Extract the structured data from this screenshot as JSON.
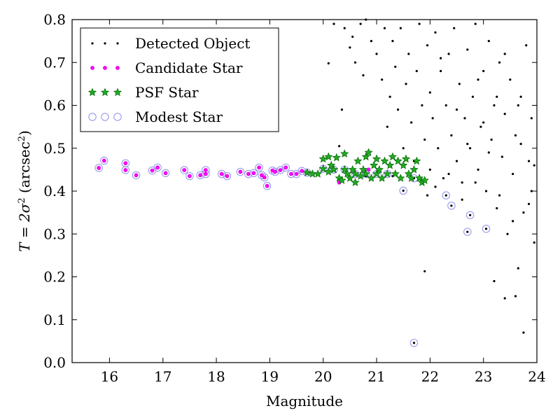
{
  "chart_data": {
    "type": "scatter",
    "xlabel": "Magnitude",
    "ylabel_main": "T = 2σ",
    "ylabel_sup": "2",
    "ylabel_unit": " (arcsec",
    "ylabel_unit_sup": "2",
    "ylabel_close": ")",
    "xlim": [
      15.3,
      24
    ],
    "ylim": [
      0.0,
      0.8
    ],
    "x_ticks": [
      16,
      17,
      18,
      19,
      20,
      21,
      22,
      23,
      24
    ],
    "x_tick_labels": [
      "16",
      "17",
      "18",
      "19",
      "20",
      "21",
      "22",
      "23",
      "24"
    ],
    "y_ticks": [
      0.0,
      0.1,
      0.2,
      0.3,
      0.4,
      0.5,
      0.6,
      0.7,
      0.8
    ],
    "y_tick_labels": [
      "0.0",
      "0.1",
      "0.2",
      "0.3",
      "0.4",
      "0.5",
      "0.6",
      "0.7",
      "0.8"
    ],
    "grid": false,
    "legend_placement": "upper-left",
    "series": [
      {
        "name": "Detected Object",
        "marker": "dot",
        "color": "#000000",
        "points": [
          [
            15.8,
            0.454
          ],
          [
            15.9,
            0.471
          ],
          [
            16.3,
            0.465
          ],
          [
            16.3,
            0.449
          ],
          [
            16.5,
            0.437
          ],
          [
            16.8,
            0.448
          ],
          [
            16.9,
            0.455
          ],
          [
            17.05,
            0.442
          ],
          [
            17.4,
            0.449
          ],
          [
            17.5,
            0.435
          ],
          [
            17.7,
            0.437
          ],
          [
            17.8,
            0.449
          ],
          [
            17.8,
            0.44
          ],
          [
            18.1,
            0.44
          ],
          [
            18.2,
            0.435
          ],
          [
            18.45,
            0.445
          ],
          [
            18.6,
            0.44
          ],
          [
            18.7,
            0.442
          ],
          [
            18.8,
            0.455
          ],
          [
            18.85,
            0.437
          ],
          [
            18.9,
            0.432
          ],
          [
            18.95,
            0.412
          ],
          [
            19.05,
            0.448
          ],
          [
            19.1,
            0.445
          ],
          [
            19.2,
            0.449
          ],
          [
            19.3,
            0.455
          ],
          [
            19.4,
            0.44
          ],
          [
            19.5,
            0.44
          ],
          [
            19.6,
            0.447
          ],
          [
            19.7,
            0.443
          ],
          [
            19.9,
            0.44
          ],
          [
            20.1,
            0.445
          ],
          [
            20.3,
            0.42
          ],
          [
            20.4,
            0.45
          ],
          [
            20.6,
            0.44
          ],
          [
            20.8,
            0.435
          ],
          [
            21.0,
            0.44
          ],
          [
            21.3,
            0.435
          ],
          [
            21.5,
            0.401
          ],
          [
            21.7,
            0.43
          ],
          [
            21.9,
            0.425
          ],
          [
            22.3,
            0.39
          ],
          [
            22.4,
            0.366
          ],
          [
            22.75,
            0.344
          ],
          [
            22.7,
            0.305
          ],
          [
            23.05,
            0.312
          ],
          [
            21.7,
            0.046
          ],
          [
            21.9,
            0.213
          ],
          [
            20.1,
            0.698
          ],
          [
            20.2,
            0.79
          ],
          [
            20.3,
            0.505
          ],
          [
            20.35,
            0.59
          ],
          [
            20.4,
            0.78
          ],
          [
            20.5,
            0.735
          ],
          [
            20.55,
            0.76
          ],
          [
            20.6,
            0.7
          ],
          [
            20.7,
            0.79
          ],
          [
            20.75,
            0.67
          ],
          [
            20.8,
            0.8
          ],
          [
            20.9,
            0.75
          ],
          [
            21.0,
            0.72
          ],
          [
            21.1,
            0.66
          ],
          [
            21.15,
            0.78
          ],
          [
            21.2,
            0.55
          ],
          [
            21.25,
            0.62
          ],
          [
            21.3,
            0.75
          ],
          [
            21.35,
            0.69
          ],
          [
            21.4,
            0.59
          ],
          [
            21.45,
            0.78
          ],
          [
            21.5,
            0.5
          ],
          [
            21.55,
            0.65
          ],
          [
            21.6,
            0.72
          ],
          [
            21.65,
            0.56
          ],
          [
            21.7,
            0.47
          ],
          [
            21.75,
            0.68
          ],
          [
            21.8,
            0.79
          ],
          [
            21.85,
            0.6
          ],
          [
            21.9,
            0.52
          ],
          [
            21.95,
            0.74
          ],
          [
            22.0,
            0.63
          ],
          [
            22.0,
            0.45
          ],
          [
            22.05,
            0.57
          ],
          [
            22.1,
            0.77
          ],
          [
            22.15,
            0.5
          ],
          [
            22.2,
            0.68
          ],
          [
            22.25,
            0.43
          ],
          [
            22.3,
            0.6
          ],
          [
            22.35,
            0.72
          ],
          [
            22.4,
            0.53
          ],
          [
            22.45,
            0.78
          ],
          [
            22.5,
            0.47
          ],
          [
            22.55,
            0.65
          ],
          [
            22.6,
            0.42
          ],
          [
            22.65,
            0.57
          ],
          [
            22.7,
            0.73
          ],
          [
            22.75,
            0.5
          ],
          [
            22.8,
            0.62
          ],
          [
            22.85,
            0.79
          ],
          [
            22.9,
            0.45
          ],
          [
            22.95,
            0.55
          ],
          [
            23.0,
            0.68
          ],
          [
            23.05,
            0.4
          ],
          [
            23.1,
            0.75
          ],
          [
            23.15,
            0.52
          ],
          [
            23.2,
            0.6
          ],
          [
            23.25,
            0.36
          ],
          [
            23.3,
            0.7
          ],
          [
            23.35,
            0.48
          ],
          [
            23.4,
            0.58
          ],
          [
            23.45,
            0.3
          ],
          [
            23.5,
            0.66
          ],
          [
            23.55,
            0.44
          ],
          [
            23.6,
            0.53
          ],
          [
            23.65,
            0.22
          ],
          [
            23.7,
            0.62
          ],
          [
            23.75,
            0.35
          ],
          [
            23.8,
            0.74
          ],
          [
            23.85,
            0.47
          ],
          [
            23.9,
            0.57
          ],
          [
            23.95,
            0.28
          ],
          [
            23.6,
            0.155
          ],
          [
            23.4,
            0.15
          ],
          [
            23.75,
            0.07
          ],
          [
            23.2,
            0.19
          ],
          [
            23.9,
            0.4
          ],
          [
            22.2,
            0.71
          ],
          [
            22.5,
            0.59
          ],
          [
            22.9,
            0.66
          ],
          [
            23.1,
            0.49
          ],
          [
            23.4,
            0.72
          ],
          [
            23.7,
            0.51
          ],
          [
            21.95,
            0.39
          ],
          [
            22.1,
            0.41
          ],
          [
            22.6,
            0.38
          ],
          [
            22.85,
            0.42
          ],
          [
            23.3,
            0.39
          ],
          [
            23.55,
            0.33
          ],
          [
            23.85,
            0.37
          ],
          [
            22.35,
            0.44
          ],
          [
            22.7,
            0.51
          ],
          [
            23.0,
            0.56
          ],
          [
            23.25,
            0.62
          ],
          [
            23.65,
            0.6
          ],
          [
            23.95,
            0.46
          ]
        ]
      },
      {
        "name": "Candidate Star",
        "marker": "circle-filled",
        "color": "#ff00ff",
        "points": [
          [
            15.8,
            0.454
          ],
          [
            15.9,
            0.471
          ],
          [
            16.3,
            0.465
          ],
          [
            16.3,
            0.449
          ],
          [
            16.5,
            0.437
          ],
          [
            16.8,
            0.448
          ],
          [
            16.9,
            0.455
          ],
          [
            17.05,
            0.442
          ],
          [
            17.4,
            0.449
          ],
          [
            17.5,
            0.435
          ],
          [
            17.7,
            0.437
          ],
          [
            17.8,
            0.449
          ],
          [
            17.8,
            0.44
          ],
          [
            18.1,
            0.44
          ],
          [
            18.2,
            0.435
          ],
          [
            18.45,
            0.445
          ],
          [
            18.6,
            0.44
          ],
          [
            18.7,
            0.442
          ],
          [
            18.8,
            0.455
          ],
          [
            18.85,
            0.437
          ],
          [
            18.9,
            0.432
          ],
          [
            18.95,
            0.412
          ],
          [
            19.05,
            0.448
          ],
          [
            19.1,
            0.445
          ],
          [
            19.2,
            0.449
          ],
          [
            19.3,
            0.455
          ],
          [
            19.4,
            0.44
          ],
          [
            19.5,
            0.44
          ],
          [
            19.6,
            0.447
          ],
          [
            20.3,
            0.42
          ],
          [
            20.85,
            0.45
          ]
        ]
      },
      {
        "name": "PSF Star",
        "marker": "star",
        "color": "#22aa22",
        "points": [
          [
            19.7,
            0.443
          ],
          [
            19.8,
            0.44
          ],
          [
            19.9,
            0.44
          ],
          [
            20.0,
            0.452
          ],
          [
            20.0,
            0.475
          ],
          [
            20.1,
            0.445
          ],
          [
            20.1,
            0.48
          ],
          [
            20.15,
            0.46
          ],
          [
            20.2,
            0.45
          ],
          [
            20.25,
            0.478
          ],
          [
            20.3,
            0.43
          ],
          [
            20.35,
            0.425
          ],
          [
            20.4,
            0.45
          ],
          [
            20.4,
            0.487
          ],
          [
            20.45,
            0.44
          ],
          [
            20.5,
            0.43
          ],
          [
            20.55,
            0.45
          ],
          [
            20.6,
            0.44
          ],
          [
            20.6,
            0.42
          ],
          [
            20.65,
            0.47
          ],
          [
            20.7,
            0.435
          ],
          [
            20.75,
            0.45
          ],
          [
            20.8,
            0.44
          ],
          [
            20.8,
            0.48
          ],
          [
            20.85,
            0.49
          ],
          [
            20.9,
            0.43
          ],
          [
            20.95,
            0.46
          ],
          [
            21.0,
            0.44
          ],
          [
            21.0,
            0.475
          ],
          [
            21.05,
            0.45
          ],
          [
            21.1,
            0.43
          ],
          [
            21.15,
            0.47
          ],
          [
            21.2,
            0.44
          ],
          [
            21.25,
            0.46
          ],
          [
            21.3,
            0.48
          ],
          [
            21.35,
            0.44
          ],
          [
            21.4,
            0.47
          ],
          [
            21.45,
            0.43
          ],
          [
            21.5,
            0.46
          ],
          [
            21.55,
            0.475
          ],
          [
            21.6,
            0.44
          ],
          [
            21.65,
            0.43
          ],
          [
            21.7,
            0.45
          ],
          [
            21.75,
            0.47
          ],
          [
            21.8,
            0.43
          ],
          [
            21.85,
            0.42
          ],
          [
            21.9,
            0.425
          ]
        ]
      },
      {
        "name": "Modest Star",
        "marker": "circle-open",
        "color": "#9999ee",
        "points": [
          [
            15.8,
            0.454
          ],
          [
            15.9,
            0.471
          ],
          [
            16.3,
            0.465
          ],
          [
            16.3,
            0.449
          ],
          [
            16.5,
            0.437
          ],
          [
            16.8,
            0.448
          ],
          [
            16.9,
            0.455
          ],
          [
            17.05,
            0.442
          ],
          [
            17.4,
            0.449
          ],
          [
            17.5,
            0.435
          ],
          [
            17.7,
            0.437
          ],
          [
            17.8,
            0.449
          ],
          [
            17.8,
            0.44
          ],
          [
            18.1,
            0.44
          ],
          [
            18.2,
            0.435
          ],
          [
            18.45,
            0.445
          ],
          [
            18.6,
            0.44
          ],
          [
            18.7,
            0.442
          ],
          [
            18.8,
            0.455
          ],
          [
            18.85,
            0.437
          ],
          [
            18.9,
            0.432
          ],
          [
            18.95,
            0.412
          ],
          [
            19.05,
            0.448
          ],
          [
            19.1,
            0.445
          ],
          [
            19.2,
            0.449
          ],
          [
            19.3,
            0.455
          ],
          [
            19.4,
            0.44
          ],
          [
            19.5,
            0.44
          ],
          [
            19.6,
            0.447
          ],
          [
            19.7,
            0.443
          ],
          [
            20.0,
            0.452
          ],
          [
            20.2,
            0.45
          ],
          [
            20.4,
            0.45
          ],
          [
            20.6,
            0.44
          ],
          [
            20.8,
            0.44
          ],
          [
            21.0,
            0.44
          ],
          [
            21.2,
            0.44
          ],
          [
            21.5,
            0.401
          ],
          [
            21.7,
            0.43
          ],
          [
            22.3,
            0.39
          ],
          [
            22.4,
            0.366
          ],
          [
            22.75,
            0.344
          ],
          [
            22.7,
            0.305
          ],
          [
            23.05,
            0.312
          ],
          [
            21.7,
            0.046
          ]
        ]
      }
    ]
  }
}
